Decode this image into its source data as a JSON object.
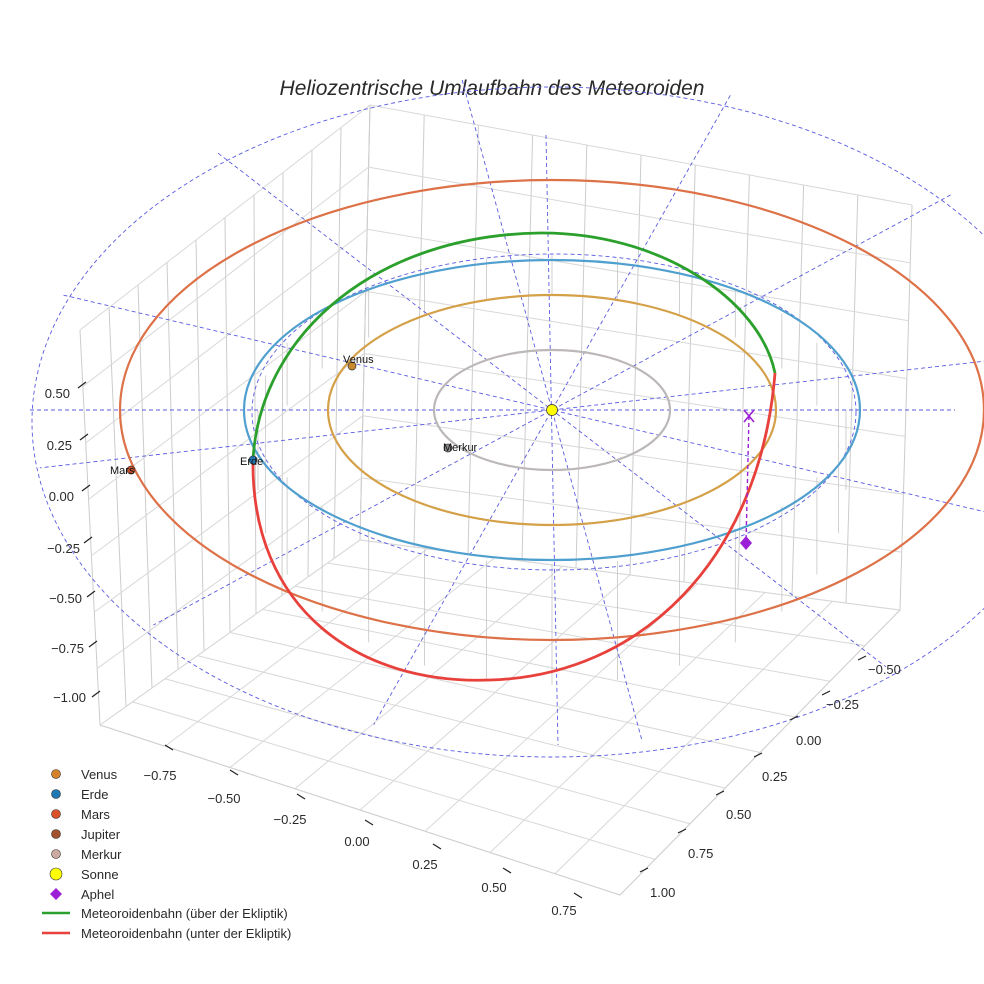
{
  "chart_data": {
    "type": "3d-line",
    "title": "Heliozentrische Umlaufbahn des Meteoroiden",
    "axes": {
      "x_ticks": [
        "−0.75",
        "−0.50",
        "−0.25",
        "0.00",
        "0.25",
        "0.50",
        "0.75"
      ],
      "y_ticks": [
        "−0.50",
        "−0.25",
        "0.00",
        "0.25",
        "0.50",
        "0.75",
        "1.00"
      ],
      "z_ticks": [
        "0.50",
        "0.25",
        "0.00",
        "−0.25",
        "−0.50",
        "−0.75",
        "−1.00"
      ]
    },
    "planet_orbits": [
      {
        "name": "Merkur",
        "color": "#bdb8b8",
        "radius_au": 0.39
      },
      {
        "name": "Venus",
        "color": "#d4a048",
        "radius_au": 0.72
      },
      {
        "name": "Erde",
        "color": "#4f9fcf",
        "radius_au": 1.0
      },
      {
        "name": "Mars",
        "color": "#dd7148",
        "radius_au": 1.52
      }
    ],
    "bodies": [
      {
        "name": "Venus",
        "label": "Venus",
        "color": "#c88a2e"
      },
      {
        "name": "Erde",
        "label": "Erde",
        "color": "#1f77b4"
      },
      {
        "name": "Mars",
        "label": "Mars",
        "color": "#c8532a"
      },
      {
        "name": "Merkur",
        "label": "Merkur",
        "color": "#8f8a8a"
      },
      {
        "name": "Sonne",
        "label": "",
        "color": "#ffff00"
      }
    ],
    "meteoroid_orbit": {
      "above_ecliptic_color": "#2ca02c",
      "below_ecliptic_color": "#e8413c"
    },
    "aphel": {
      "color": "#9b1fd6"
    },
    "legend": [
      {
        "label": "Venus",
        "marker": "dot",
        "color": "#d4822a"
      },
      {
        "label": "Erde",
        "marker": "dot",
        "color": "#1f77b4"
      },
      {
        "label": "Mars",
        "marker": "dot",
        "color": "#d9522a"
      },
      {
        "label": "Jupiter",
        "marker": "dot",
        "color": "#a0522d"
      },
      {
        "label": "Merkur",
        "marker": "dot",
        "color": "#c9a9a0"
      },
      {
        "label": "Sonne",
        "marker": "bigdot",
        "color": "#ffff00"
      },
      {
        "label": "Aphel",
        "marker": "diamond",
        "color": "#9b1fd6"
      },
      {
        "label": "Meteoroidenbahn (über der Ekliptik)",
        "marker": "line",
        "color": "#2ca02c"
      },
      {
        "label": "Meteoroidenbahn (unter der Ekliptik)",
        "marker": "line",
        "color": "#e8413c"
      }
    ]
  }
}
